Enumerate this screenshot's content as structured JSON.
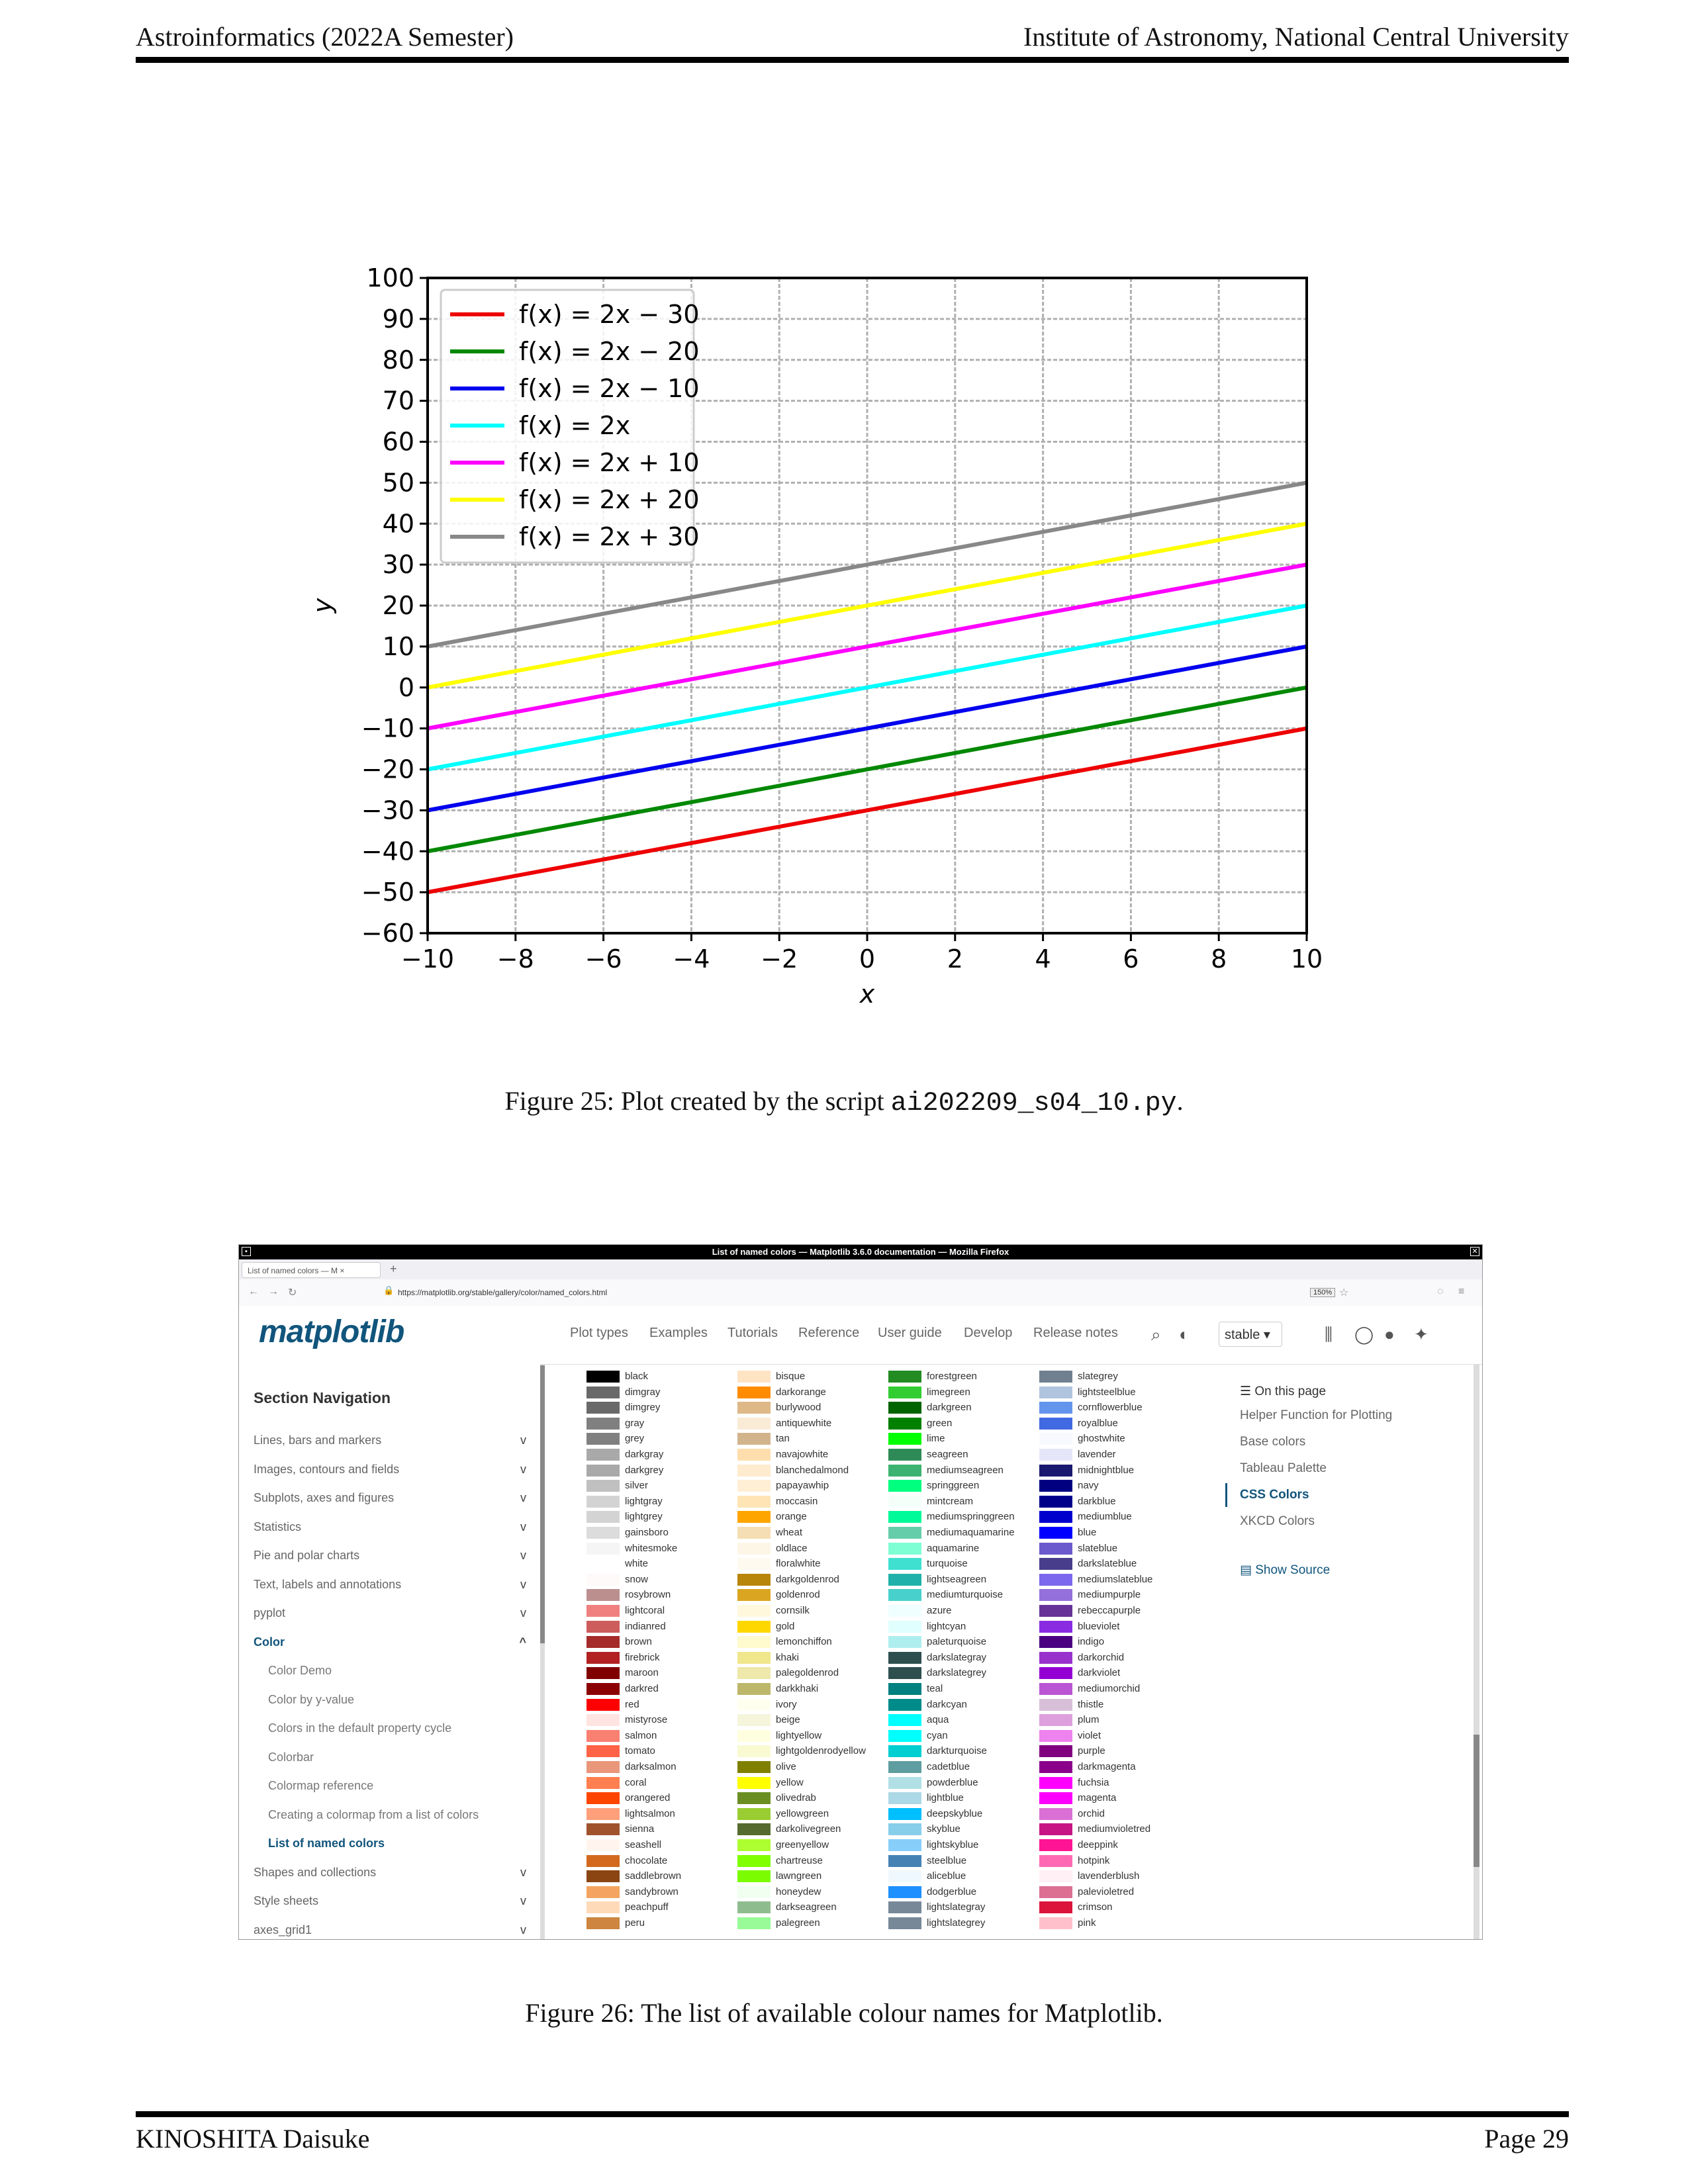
{
  "header": {
    "left": "Astroinformatics (2022A Semester)",
    "right": "Institute of Astronomy, National Central University"
  },
  "footer": {
    "left": "KINOSHITA Daisuke",
    "right": "Page 29"
  },
  "figure25": {
    "caption_prefix": "Figure 25: Plot created by the script ",
    "caption_code": "ai202209_s04_10.py",
    "caption_suffix": "."
  },
  "figure26": {
    "caption": "Figure 26: The list of available colour names for Matplotlib."
  },
  "chart_data": {
    "type": "line",
    "xlabel": "x",
    "ylabel": "y",
    "xlim": [
      -10,
      10
    ],
    "ylim": [
      -60,
      100
    ],
    "xticks": [
      -10,
      -8,
      -6,
      -4,
      -2,
      0,
      2,
      4,
      6,
      8,
      10
    ],
    "yticks": [
      -60,
      -50,
      -40,
      -30,
      -20,
      -10,
      0,
      10,
      20,
      30,
      40,
      50,
      60,
      70,
      80,
      90,
      100
    ],
    "grid": true,
    "legend": "top-left",
    "series": [
      {
        "name": "f(x) = 2x − 30",
        "color": "#ee0000",
        "x": [
          -10,
          10
        ],
        "y": [
          -50,
          -10
        ]
      },
      {
        "name": "f(x) = 2x − 20",
        "color": "#008800",
        "x": [
          -10,
          10
        ],
        "y": [
          -40,
          0
        ]
      },
      {
        "name": "f(x) = 2x − 10",
        "color": "#0000ee",
        "x": [
          -10,
          10
        ],
        "y": [
          -30,
          10
        ]
      },
      {
        "name": "f(x) = 2x",
        "color": "#00ffff",
        "x": [
          -10,
          10
        ],
        "y": [
          -20,
          20
        ]
      },
      {
        "name": "f(x) = 2x + 10",
        "color": "#ff00ff",
        "x": [
          -10,
          10
        ],
        "y": [
          -10,
          30
        ]
      },
      {
        "name": "f(x) = 2x + 20",
        "color": "#ffff00",
        "x": [
          -10,
          10
        ],
        "y": [
          0,
          40
        ]
      },
      {
        "name": "f(x) = 2x + 30",
        "color": "#888888",
        "x": [
          -10,
          10
        ],
        "y": [
          10,
          50
        ]
      }
    ]
  },
  "screenshot": {
    "window_title": "List of named colors — Matplotlib 3.6.0 documentation — Mozilla Firefox",
    "tab_label": "List of named colors — M",
    "url": "https://matplotlib.org/stable/gallery/color/named_colors.html",
    "zoom": "150%",
    "logo": "matplotlib",
    "topnav": [
      "Plot types",
      "Examples",
      "Tutorials",
      "Reference",
      "User guide",
      "Develop",
      "Release notes"
    ],
    "version": "stable",
    "section_nav_title": "Section Navigation",
    "sidebar": [
      "Lines, bars and markers",
      "Images, contours and fields",
      "Subplots, axes and figures",
      "Statistics",
      "Pie and polar charts",
      "Text, labels and annotations",
      "pyplot",
      "Color"
    ],
    "color_sub": [
      "Color Demo",
      "Color by y-value",
      "Colors in the default property cycle",
      "Colorbar",
      "Colormap reference",
      "Creating a colormap from a list of colors",
      "List of named colors"
    ],
    "sidebar_after": [
      "Shapes and collections",
      "Style sheets",
      "axes_grid1"
    ],
    "toc_title": "On this page",
    "toc": [
      "Helper Function for Plotting",
      "Base colors",
      "Tableau Palette",
      "CSS Colors",
      "XKCD Colors"
    ],
    "show_source": "Show Source",
    "color_columns": [
      [
        [
          "black",
          "#000000"
        ],
        [
          "dimgray",
          "#696969"
        ],
        [
          "dimgrey",
          "#696969"
        ],
        [
          "gray",
          "#808080"
        ],
        [
          "grey",
          "#808080"
        ],
        [
          "darkgray",
          "#a9a9a9"
        ],
        [
          "darkgrey",
          "#a9a9a9"
        ],
        [
          "silver",
          "#c0c0c0"
        ],
        [
          "lightgray",
          "#d3d3d3"
        ],
        [
          "lightgrey",
          "#d3d3d3"
        ],
        [
          "gainsboro",
          "#dcdcdc"
        ],
        [
          "whitesmoke",
          "#f5f5f5"
        ],
        [
          "white",
          "#ffffff"
        ],
        [
          "snow",
          "#fffafa"
        ],
        [
          "rosybrown",
          "#bc8f8f"
        ],
        [
          "lightcoral",
          "#f08080"
        ],
        [
          "indianred",
          "#cd5c5c"
        ],
        [
          "brown",
          "#a52a2a"
        ],
        [
          "firebrick",
          "#b22222"
        ],
        [
          "maroon",
          "#800000"
        ],
        [
          "darkred",
          "#8b0000"
        ],
        [
          "red",
          "#ff0000"
        ],
        [
          "mistyrose",
          "#ffe4e1"
        ],
        [
          "salmon",
          "#fa8072"
        ],
        [
          "tomato",
          "#ff6347"
        ],
        [
          "darksalmon",
          "#e9967a"
        ],
        [
          "coral",
          "#ff7f50"
        ],
        [
          "orangered",
          "#ff4500"
        ],
        [
          "lightsalmon",
          "#ffa07a"
        ],
        [
          "sienna",
          "#a0522d"
        ],
        [
          "seashell",
          "#fff5ee"
        ],
        [
          "chocolate",
          "#d2691e"
        ],
        [
          "saddlebrown",
          "#8b4513"
        ],
        [
          "sandybrown",
          "#f4a460"
        ],
        [
          "peachpuff",
          "#ffdab9"
        ],
        [
          "peru",
          "#cd853f"
        ]
      ],
      [
        [
          "bisque",
          "#ffe4c4"
        ],
        [
          "darkorange",
          "#ff8c00"
        ],
        [
          "burlywood",
          "#deb887"
        ],
        [
          "antiquewhite",
          "#faebd7"
        ],
        [
          "tan",
          "#d2b48c"
        ],
        [
          "navajowhite",
          "#ffdead"
        ],
        [
          "blanchedalmond",
          "#ffebcd"
        ],
        [
          "papayawhip",
          "#ffefd5"
        ],
        [
          "moccasin",
          "#ffe4b5"
        ],
        [
          "orange",
          "#ffa500"
        ],
        [
          "wheat",
          "#f5deb3"
        ],
        [
          "oldlace",
          "#fdf5e6"
        ],
        [
          "floralwhite",
          "#fffaf0"
        ],
        [
          "darkgoldenrod",
          "#b8860b"
        ],
        [
          "goldenrod",
          "#daa520"
        ],
        [
          "cornsilk",
          "#fff8dc"
        ],
        [
          "gold",
          "#ffd700"
        ],
        [
          "lemonchiffon",
          "#fffacd"
        ],
        [
          "khaki",
          "#f0e68c"
        ],
        [
          "palegoldenrod",
          "#eee8aa"
        ],
        [
          "darkkhaki",
          "#bdb76b"
        ],
        [
          "ivory",
          "#fffff0"
        ],
        [
          "beige",
          "#f5f5dc"
        ],
        [
          "lightyellow",
          "#ffffe0"
        ],
        [
          "lightgoldenrodyellow",
          "#fafad2"
        ],
        [
          "olive",
          "#808000"
        ],
        [
          "yellow",
          "#ffff00"
        ],
        [
          "olivedrab",
          "#6b8e23"
        ],
        [
          "yellowgreen",
          "#9acd32"
        ],
        [
          "darkolivegreen",
          "#556b2f"
        ],
        [
          "greenyellow",
          "#adff2f"
        ],
        [
          "chartreuse",
          "#7fff00"
        ],
        [
          "lawngreen",
          "#7cfc00"
        ],
        [
          "honeydew",
          "#f0fff0"
        ],
        [
          "darkseagreen",
          "#8fbc8f"
        ],
        [
          "palegreen",
          "#98fb98"
        ]
      ],
      [
        [
          "forestgreen",
          "#228b22"
        ],
        [
          "limegreen",
          "#32cd32"
        ],
        [
          "darkgreen",
          "#006400"
        ],
        [
          "green",
          "#008000"
        ],
        [
          "lime",
          "#00ff00"
        ],
        [
          "seagreen",
          "#2e8b57"
        ],
        [
          "mediumseagreen",
          "#3cb371"
        ],
        [
          "springgreen",
          "#00ff7f"
        ],
        [
          "mintcream",
          "#f5fffa"
        ],
        [
          "mediumspringgreen",
          "#00fa9a"
        ],
        [
          "mediumaquamarine",
          "#66cdaa"
        ],
        [
          "aquamarine",
          "#7fffd4"
        ],
        [
          "turquoise",
          "#40e0d0"
        ],
        [
          "lightseagreen",
          "#20b2aa"
        ],
        [
          "mediumturquoise",
          "#48d1cc"
        ],
        [
          "azure",
          "#f0ffff"
        ],
        [
          "lightcyan",
          "#e0ffff"
        ],
        [
          "paleturquoise",
          "#afeeee"
        ],
        [
          "darkslategray",
          "#2f4f4f"
        ],
        [
          "darkslategrey",
          "#2f4f4f"
        ],
        [
          "teal",
          "#008080"
        ],
        [
          "darkcyan",
          "#008b8b"
        ],
        [
          "aqua",
          "#00ffff"
        ],
        [
          "cyan",
          "#00ffff"
        ],
        [
          "darkturquoise",
          "#00ced1"
        ],
        [
          "cadetblue",
          "#5f9ea0"
        ],
        [
          "powderblue",
          "#b0e0e6"
        ],
        [
          "lightblue",
          "#add8e6"
        ],
        [
          "deepskyblue",
          "#00bfff"
        ],
        [
          "skyblue",
          "#87ceeb"
        ],
        [
          "lightskyblue",
          "#87cefa"
        ],
        [
          "steelblue",
          "#4682b4"
        ],
        [
          "aliceblue",
          "#f0f8ff"
        ],
        [
          "dodgerblue",
          "#1e90ff"
        ],
        [
          "lightslategray",
          "#778899"
        ],
        [
          "lightslategrey",
          "#778899"
        ]
      ],
      [
        [
          "slategrey",
          "#708090"
        ],
        [
          "lightsteelblue",
          "#b0c4de"
        ],
        [
          "cornflowerblue",
          "#6495ed"
        ],
        [
          "royalblue",
          "#4169e1"
        ],
        [
          "ghostwhite",
          "#f8f8ff"
        ],
        [
          "lavender",
          "#e6e6fa"
        ],
        [
          "midnightblue",
          "#191970"
        ],
        [
          "navy",
          "#000080"
        ],
        [
          "darkblue",
          "#00008b"
        ],
        [
          "mediumblue",
          "#0000cd"
        ],
        [
          "blue",
          "#0000ff"
        ],
        [
          "slateblue",
          "#6a5acd"
        ],
        [
          "darkslateblue",
          "#483d8b"
        ],
        [
          "mediumslateblue",
          "#7b68ee"
        ],
        [
          "mediumpurple",
          "#9370db"
        ],
        [
          "rebeccapurple",
          "#663399"
        ],
        [
          "blueviolet",
          "#8a2be2"
        ],
        [
          "indigo",
          "#4b0082"
        ],
        [
          "darkorchid",
          "#9932cc"
        ],
        [
          "darkviolet",
          "#9400d3"
        ],
        [
          "mediumorchid",
          "#ba55d3"
        ],
        [
          "thistle",
          "#d8bfd8"
        ],
        [
          "plum",
          "#dda0dd"
        ],
        [
          "violet",
          "#ee82ee"
        ],
        [
          "purple",
          "#800080"
        ],
        [
          "darkmagenta",
          "#8b008b"
        ],
        [
          "fuchsia",
          "#ff00ff"
        ],
        [
          "magenta",
          "#ff00ff"
        ],
        [
          "orchid",
          "#da70d6"
        ],
        [
          "mediumvioletred",
          "#c71585"
        ],
        [
          "deeppink",
          "#ff1493"
        ],
        [
          "hotpink",
          "#ff69b4"
        ],
        [
          "lavenderblush",
          "#fff0f5"
        ],
        [
          "palevioletred",
          "#db7093"
        ],
        [
          "crimson",
          "#dc143c"
        ],
        [
          "pink",
          "#ffc0cb"
        ]
      ]
    ]
  }
}
